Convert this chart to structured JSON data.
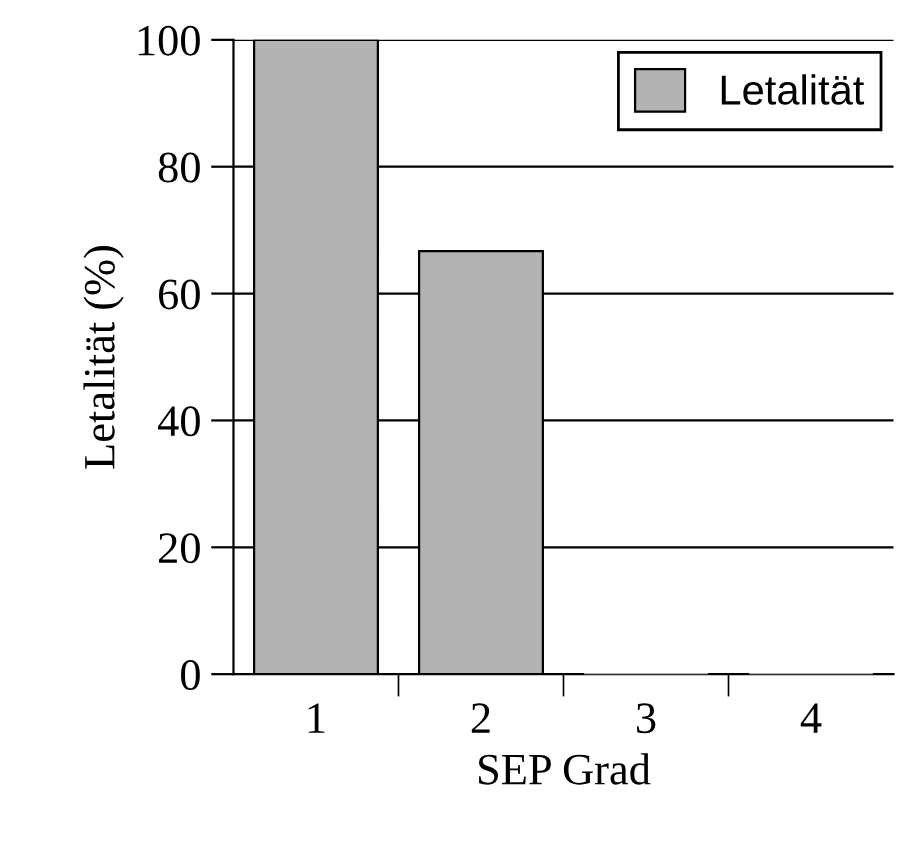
{
  "chart_data": {
    "type": "bar",
    "xlabel": "SEP Grad",
    "ylabel": "Letalität (%)",
    "categories": [
      "1",
      "2",
      "3",
      "4"
    ],
    "series": [
      {
        "name": "Letalität",
        "color": "#b3b3b3",
        "values": [
          100,
          66.7,
          0,
          0
        ]
      }
    ],
    "ylim": [
      0,
      100
    ],
    "yticks": [
      0,
      20,
      40,
      60,
      80,
      100
    ],
    "grid": "y",
    "legend": "top right"
  }
}
